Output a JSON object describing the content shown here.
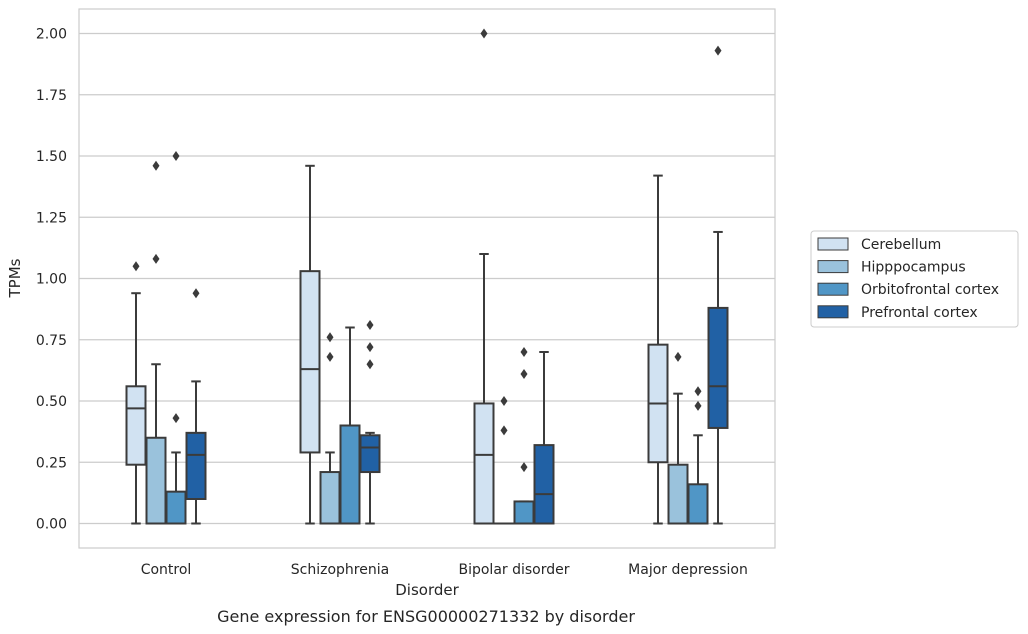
{
  "chart_data": {
    "type": "box",
    "xlabel": "Disorder",
    "ylabel": "TPMs",
    "caption": "Gene expression for ENSG00000271332 by disorder",
    "ylim": [
      -0.1,
      2.1
    ],
    "yticks": [
      "0.00",
      "0.25",
      "0.50",
      "0.75",
      "1.00",
      "1.25",
      "1.50",
      "1.75",
      "2.00"
    ],
    "grid": "horizontal",
    "legend_position": "right",
    "categories": [
      "Control",
      "Schizophrenia",
      "Bipolar disorder",
      "Major depression"
    ],
    "series": [
      {
        "name": "Cerebellum",
        "color": "#d1e2f2",
        "boxes": [
          {
            "whislo": 0.0,
            "q1": 0.24,
            "med": 0.47,
            "q3": 0.56,
            "whishi": 0.94,
            "fliers": [
              1.05
            ]
          },
          {
            "whislo": 0.0,
            "q1": 0.29,
            "med": 0.63,
            "q3": 1.03,
            "whishi": 1.46,
            "fliers": []
          },
          {
            "whislo": 0.0,
            "q1": 0.0,
            "med": 0.28,
            "q3": 0.49,
            "whishi": 1.1,
            "fliers": [
              2.0
            ]
          },
          {
            "whislo": 0.0,
            "q1": 0.25,
            "med": 0.49,
            "q3": 0.73,
            "whishi": 1.42,
            "fliers": []
          }
        ]
      },
      {
        "name": "Hipppocampus",
        "color": "#9ac2dc",
        "boxes": [
          {
            "whislo": 0.0,
            "q1": 0.0,
            "med": 0.0,
            "q3": 0.35,
            "whishi": 0.65,
            "fliers": [
              1.08,
              1.46
            ]
          },
          {
            "whislo": 0.0,
            "q1": 0.0,
            "med": 0.0,
            "q3": 0.21,
            "whishi": 0.29,
            "fliers": [
              0.68,
              0.76
            ]
          },
          {
            "whislo": 0.0,
            "q1": 0.0,
            "med": 0.0,
            "q3": 0.0,
            "whishi": 0.0,
            "fliers": [
              0.38,
              0.5
            ]
          },
          {
            "whislo": 0.0,
            "q1": 0.0,
            "med": 0.0,
            "q3": 0.24,
            "whishi": 0.53,
            "fliers": [
              0.68
            ]
          }
        ]
      },
      {
        "name": "Orbitofrontal cortex",
        "color": "#5096c6",
        "boxes": [
          {
            "whislo": 0.0,
            "q1": 0.0,
            "med": 0.0,
            "q3": 0.13,
            "whishi": 0.29,
            "fliers": [
              0.43,
              1.5
            ]
          },
          {
            "whislo": 0.0,
            "q1": 0.0,
            "med": 0.0,
            "q3": 0.4,
            "whishi": 0.8,
            "fliers": []
          },
          {
            "whislo": 0.0,
            "q1": 0.0,
            "med": 0.0,
            "q3": 0.09,
            "whishi": 0.09,
            "fliers": [
              0.23,
              0.61,
              0.7
            ]
          },
          {
            "whislo": 0.0,
            "q1": 0.0,
            "med": 0.0,
            "q3": 0.16,
            "whishi": 0.36,
            "fliers": [
              0.48,
              0.54
            ]
          }
        ]
      },
      {
        "name": "Prefrontal cortex",
        "color": "#2161a5",
        "boxes": [
          {
            "whislo": 0.0,
            "q1": 0.1,
            "med": 0.28,
            "q3": 0.37,
            "whishi": 0.58,
            "fliers": [
              0.94
            ]
          },
          {
            "whislo": 0.0,
            "q1": 0.21,
            "med": 0.31,
            "q3": 0.36,
            "whishi": 0.37,
            "fliers": [
              0.65,
              0.72,
              0.81
            ]
          },
          {
            "whislo": 0.0,
            "q1": 0.0,
            "med": 0.12,
            "q3": 0.32,
            "whishi": 0.7,
            "fliers": []
          },
          {
            "whislo": 0.0,
            "q1": 0.39,
            "med": 0.56,
            "q3": 0.88,
            "whishi": 1.19,
            "fliers": [
              1.93
            ]
          }
        ]
      }
    ]
  }
}
